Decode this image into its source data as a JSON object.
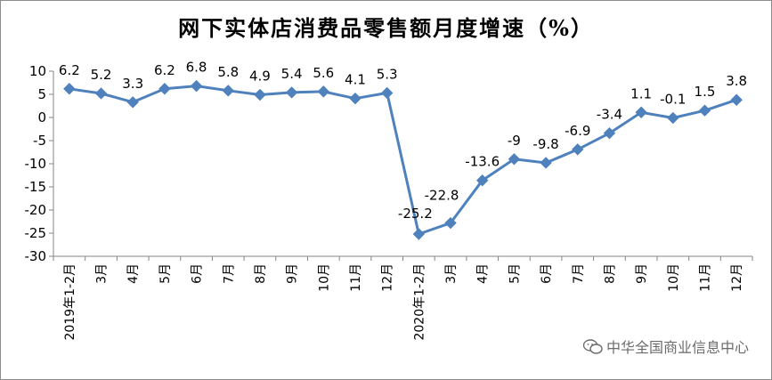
{
  "chart_data": {
    "type": "line",
    "title": "网下实体店消费品零售额月度增速（%）",
    "categories": [
      "2019年1-2月",
      "3月",
      "4月",
      "5月",
      "6月",
      "7月",
      "8月",
      "9月",
      "10月",
      "11月",
      "12月",
      "2020年1-2月",
      "3月",
      "4月",
      "5月",
      "6月",
      "7月",
      "8月",
      "9月",
      "10月",
      "11月",
      "12月"
    ],
    "values": [
      6.2,
      5.2,
      3.3,
      6.2,
      6.8,
      5.8,
      4.9,
      5.4,
      5.6,
      4.1,
      5.3,
      -25.2,
      -22.8,
      -13.6,
      -9,
      -9.8,
      -6.9,
      -3.4,
      1.1,
      -0.1,
      1.5,
      3.8
    ],
    "labels": [
      "6.2",
      "5.2",
      "3.3",
      "6.2",
      "6.8",
      "5.8",
      "4.9",
      "5.4",
      "5.6",
      "4.1",
      "5.3",
      "-25.2",
      "-22.8",
      "-13.6",
      "-9",
      "-9.8",
      "-6.9",
      "-3.4",
      "1.1",
      "-0.1",
      "1.5",
      "3.8"
    ],
    "yticks": [
      10,
      5,
      0,
      -5,
      -10,
      -15,
      -20,
      -25,
      -30
    ],
    "ylim": [
      -30,
      10
    ],
    "series_color": "#4f81bd",
    "grid": false
  },
  "watermark": {
    "text": "中华全国商业信息中心",
    "icon": "wechat-icon"
  }
}
